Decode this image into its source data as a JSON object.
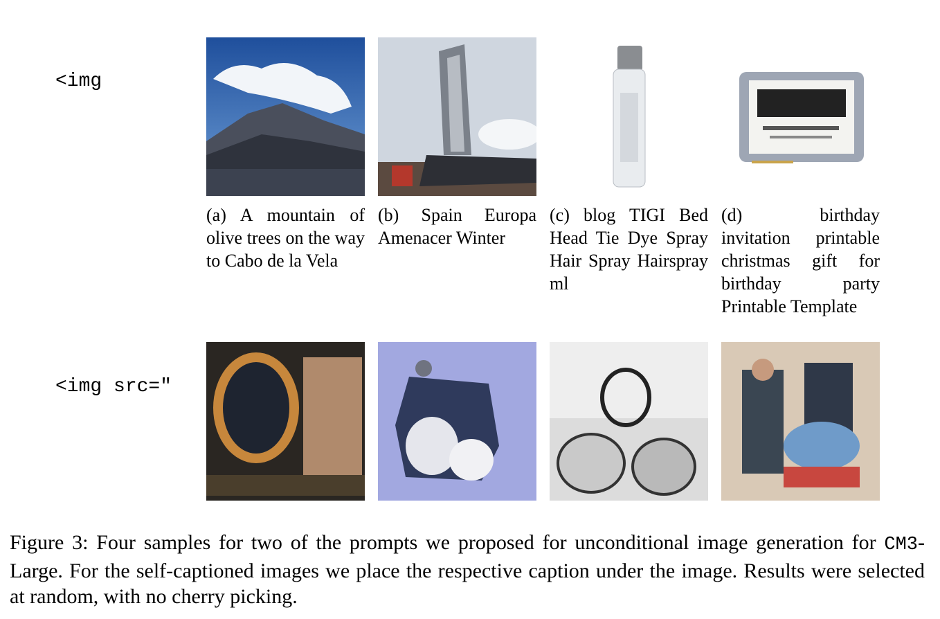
{
  "rows": [
    {
      "prompt": "<img",
      "samples": [
        {
          "caption": "(a) A mountain of olive trees on the way to Cabo de la Vela",
          "image": "mountain-image"
        },
        {
          "caption": "(b) Spain Europa Amenacer Winter",
          "image": "building-image"
        },
        {
          "caption": "(c) blog TIGI Bed Head Tie Dye Spray Hair Spray Hairspray ml",
          "image": "spray-bottle-image"
        },
        {
          "caption": "(d) birthday invitation printable christmas gift for birthday party Printable Template",
          "image": "invitation-card-image"
        }
      ]
    },
    {
      "prompt": "<img src=\"",
      "samples": [
        {
          "image": "gold-ring-image"
        },
        {
          "image": "blurry-object-image"
        },
        {
          "image": "sketch-scene-image"
        },
        {
          "image": "crowd-scene-image"
        }
      ]
    }
  ],
  "figure_caption": {
    "prefix": "Figure 3: Four samples for two of the prompts we proposed for unconditional image generation for",
    "model_code": "CM3",
    "suffix": "-Large. For the self-captioned images we place the respective caption under the image. Results were selected at random, with no cherry picking."
  }
}
